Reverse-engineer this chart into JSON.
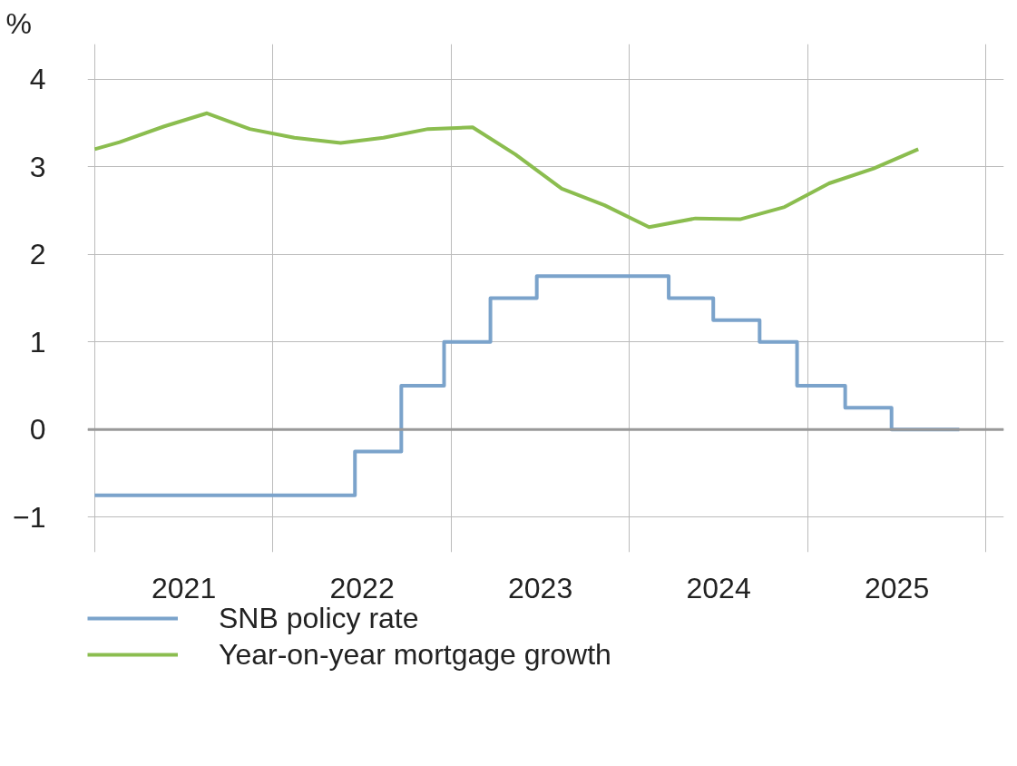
{
  "chart_data": {
    "type": "line",
    "ylabel": "%",
    "xlim": [
      2020.96,
      2026.1
    ],
    "ylim": [
      -1.4,
      4.4
    ],
    "xticks": [
      {
        "value": 2021,
        "label": null
      },
      {
        "value": 2021.5,
        "label": "2021"
      },
      {
        "value": 2022,
        "label": null
      },
      {
        "value": 2022.5,
        "label": "2022"
      },
      {
        "value": 2023,
        "label": null
      },
      {
        "value": 2023.5,
        "label": "2023"
      },
      {
        "value": 2024,
        "label": null
      },
      {
        "value": 2024.5,
        "label": "2024"
      },
      {
        "value": 2025,
        "label": null
      },
      {
        "value": 2025.5,
        "label": "2025"
      },
      {
        "value": 2026,
        "label": null
      }
    ],
    "yticks": [
      {
        "value": -1,
        "label": "−1"
      },
      0,
      1,
      2,
      3,
      4
    ],
    "grid": true,
    "legend": "bottom",
    "line_style": "solid",
    "marker": "none",
    "ref_lines": [
      {
        "axis": "y",
        "value": 0,
        "color": "#999999"
      }
    ],
    "series": [
      {
        "name": "SNB policy rate",
        "type": "step",
        "color": "#7ba3cb",
        "x": [
          2021.0,
          2022.46,
          2022.72,
          2022.96,
          2023.22,
          2023.48,
          2024.22,
          2024.47,
          2024.73,
          2024.94,
          2025.21,
          2025.47,
          2025.85
        ],
        "values": [
          -0.75,
          -0.25,
          0.5,
          1.0,
          1.5,
          1.75,
          1.5,
          1.25,
          1.0,
          0.5,
          0.25,
          0,
          0
        ]
      },
      {
        "name": "Year-on-year mortgage growth",
        "type": "line",
        "color": "#8bbd4f",
        "x": [
          2021.0,
          2021.14,
          2021.39,
          2021.63,
          2021.87,
          2022.12,
          2022.38,
          2022.62,
          2022.87,
          2023.12,
          2023.36,
          2023.62,
          2023.86,
          2024.11,
          2024.37,
          2024.62,
          2024.87,
          2025.12,
          2025.37,
          2025.62
        ],
        "values": [
          3.2,
          3.28,
          3.46,
          3.61,
          3.43,
          3.33,
          3.27,
          3.33,
          3.43,
          3.45,
          3.14,
          2.75,
          2.56,
          2.31,
          2.41,
          2.4,
          2.54,
          2.81,
          2.98,
          3.2
        ]
      }
    ]
  }
}
